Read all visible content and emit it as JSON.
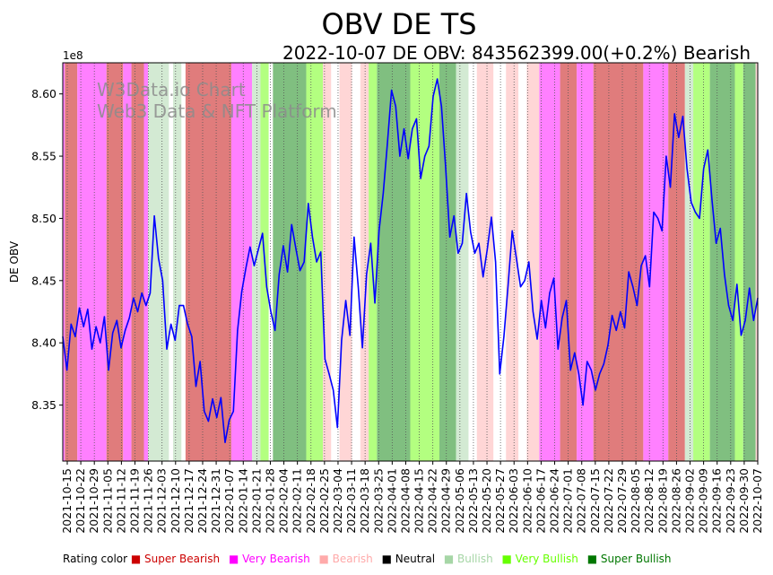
{
  "chart_data": {
    "type": "line",
    "title": "OBV DE TS",
    "subtitle": "2022-10-07 DE OBV: 843562399.00(+0.2%) Bearish",
    "ylabel": "DE OBV",
    "xlabel": "",
    "offset_label": "1e8",
    "ylim": [
      8.305,
      8.625
    ],
    "y_ticks": [
      "8.35",
      "8.40",
      "8.45",
      "8.50",
      "8.55",
      "8.60"
    ],
    "y_tick_values": [
      8.35,
      8.4,
      8.45,
      8.5,
      8.55,
      8.6
    ],
    "watermark": [
      "W3Data.io Chart",
      "Web3 Data & NFT Platform"
    ],
    "x_ticks": [
      "2021-10-15",
      "2021-10-22",
      "2021-10-29",
      "2021-11-05",
      "2021-11-12",
      "2021-11-19",
      "2021-11-26",
      "2021-12-03",
      "2021-12-10",
      "2021-12-17",
      "2021-12-24",
      "2021-12-31",
      "2022-01-07",
      "2022-01-14",
      "2022-01-21",
      "2022-01-28",
      "2022-02-04",
      "2022-02-11",
      "2022-02-18",
      "2022-02-25",
      "2022-03-04",
      "2022-03-11",
      "2022-03-18",
      "2022-03-25",
      "2022-04-01",
      "2022-04-08",
      "2022-04-15",
      "2022-04-22",
      "2022-04-29",
      "2022-05-06",
      "2022-05-13",
      "2022-05-20",
      "2022-05-27",
      "2022-06-03",
      "2022-06-10",
      "2022-06-17",
      "2022-06-24",
      "2022-07-01",
      "2022-07-08",
      "2022-07-15",
      "2022-07-22",
      "2022-07-29",
      "2022-08-05",
      "2022-08-12",
      "2022-08-19",
      "2022-08-26",
      "2022-09-02",
      "2022-09-09",
      "2022-09-16",
      "2022-09-23",
      "2022-09-30",
      "2022-10-07"
    ],
    "series": [
      {
        "name": "DE OBV",
        "color": "#0000ff",
        "points": [
          [
            0,
            8.405
          ],
          [
            1,
            8.378
          ],
          [
            2,
            8.415
          ],
          [
            3,
            8.405
          ],
          [
            4,
            8.428
          ],
          [
            5,
            8.413
          ],
          [
            6,
            8.427
          ],
          [
            7,
            8.395
          ],
          [
            8,
            8.413
          ],
          [
            9,
            8.4
          ],
          [
            10,
            8.421
          ],
          [
            11,
            8.378
          ],
          [
            12,
            8.408
          ],
          [
            13,
            8.418
          ],
          [
            14,
            8.396
          ],
          [
            15,
            8.41
          ],
          [
            16,
            8.42
          ],
          [
            17,
            8.436
          ],
          [
            18,
            8.425
          ],
          [
            19,
            8.44
          ],
          [
            20,
            8.43
          ],
          [
            21,
            8.44
          ],
          [
            22,
            8.502
          ],
          [
            23,
            8.468
          ],
          [
            24,
            8.45
          ],
          [
            25,
            8.395
          ],
          [
            26,
            8.415
          ],
          [
            27,
            8.402
          ],
          [
            28,
            8.43
          ],
          [
            29,
            8.43
          ],
          [
            30,
            8.415
          ],
          [
            31,
            8.405
          ],
          [
            32,
            8.365
          ],
          [
            33,
            8.385
          ],
          [
            34,
            8.345
          ],
          [
            35,
            8.337
          ],
          [
            36,
            8.355
          ],
          [
            37,
            8.34
          ],
          [
            38,
            8.356
          ],
          [
            39,
            8.32
          ],
          [
            40,
            8.338
          ],
          [
            41,
            8.345
          ],
          [
            42,
            8.41
          ],
          [
            43,
            8.441
          ],
          [
            44,
            8.46
          ],
          [
            45,
            8.477
          ],
          [
            46,
            8.462
          ],
          [
            47,
            8.475
          ],
          [
            48,
            8.488
          ],
          [
            49,
            8.445
          ],
          [
            50,
            8.425
          ],
          [
            51,
            8.41
          ],
          [
            52,
            8.455
          ],
          [
            53,
            8.478
          ],
          [
            54,
            8.457
          ],
          [
            55,
            8.495
          ],
          [
            56,
            8.476
          ],
          [
            57,
            8.458
          ],
          [
            58,
            8.465
          ],
          [
            59,
            8.512
          ],
          [
            60,
            8.485
          ],
          [
            61,
            8.465
          ],
          [
            62,
            8.473
          ],
          [
            63,
            8.387
          ],
          [
            64,
            8.375
          ],
          [
            65,
            8.362
          ],
          [
            66,
            8.332
          ],
          [
            67,
            8.402
          ],
          [
            68,
            8.434
          ],
          [
            69,
            8.406
          ],
          [
            70,
            8.485
          ],
          [
            71,
            8.445
          ],
          [
            72,
            8.396
          ],
          [
            73,
            8.455
          ],
          [
            74,
            8.48
          ],
          [
            75,
            8.432
          ],
          [
            76,
            8.49
          ],
          [
            77,
            8.52
          ],
          [
            78,
            8.56
          ],
          [
            79,
            8.603
          ],
          [
            80,
            8.59
          ],
          [
            81,
            8.55
          ],
          [
            82,
            8.572
          ],
          [
            83,
            8.548
          ],
          [
            84,
            8.572
          ],
          [
            85,
            8.58
          ],
          [
            86,
            8.532
          ],
          [
            87,
            8.55
          ],
          [
            88,
            8.558
          ],
          [
            89,
            8.598
          ],
          [
            90,
            8.612
          ],
          [
            91,
            8.59
          ],
          [
            92,
            8.541
          ],
          [
            93,
            8.485
          ],
          [
            94,
            8.502
          ],
          [
            95,
            8.472
          ],
          [
            96,
            8.48
          ],
          [
            97,
            8.52
          ],
          [
            98,
            8.489
          ],
          [
            99,
            8.472
          ],
          [
            100,
            8.48
          ],
          [
            101,
            8.453
          ],
          [
            102,
            8.475
          ],
          [
            103,
            8.501
          ],
          [
            104,
            8.465
          ],
          [
            105,
            8.375
          ],
          [
            106,
            8.405
          ],
          [
            107,
            8.446
          ],
          [
            108,
            8.49
          ],
          [
            109,
            8.468
          ],
          [
            110,
            8.445
          ],
          [
            111,
            8.45
          ],
          [
            112,
            8.465
          ],
          [
            113,
            8.425
          ],
          [
            114,
            8.403
          ],
          [
            115,
            8.434
          ],
          [
            116,
            8.412
          ],
          [
            117,
            8.44
          ],
          [
            118,
            8.452
          ],
          [
            119,
            8.395
          ],
          [
            120,
            8.42
          ],
          [
            121,
            8.434
          ],
          [
            122,
            8.378
          ],
          [
            123,
            8.392
          ],
          [
            124,
            8.375
          ],
          [
            125,
            8.35
          ],
          [
            126,
            8.385
          ],
          [
            127,
            8.378
          ],
          [
            128,
            8.362
          ],
          [
            129,
            8.375
          ],
          [
            130,
            8.383
          ],
          [
            131,
            8.398
          ],
          [
            132,
            8.422
          ],
          [
            133,
            8.41
          ],
          [
            134,
            8.425
          ],
          [
            135,
            8.412
          ],
          [
            136,
            8.457
          ],
          [
            137,
            8.445
          ],
          [
            138,
            8.43
          ],
          [
            139,
            8.462
          ],
          [
            140,
            8.47
          ],
          [
            141,
            8.445
          ],
          [
            142,
            8.505
          ],
          [
            143,
            8.5
          ],
          [
            144,
            8.49
          ],
          [
            145,
            8.55
          ],
          [
            146,
            8.525
          ],
          [
            147,
            8.584
          ],
          [
            148,
            8.565
          ],
          [
            149,
            8.582
          ],
          [
            150,
            8.54
          ],
          [
            151,
            8.513
          ],
          [
            152,
            8.505
          ],
          [
            153,
            8.5
          ],
          [
            154,
            8.54
          ],
          [
            155,
            8.555
          ],
          [
            156,
            8.515
          ],
          [
            157,
            8.48
          ],
          [
            158,
            8.492
          ],
          [
            159,
            8.455
          ],
          [
            160,
            8.43
          ],
          [
            161,
            8.418
          ],
          [
            162,
            8.447
          ],
          [
            163,
            8.406
          ],
          [
            164,
            8.418
          ],
          [
            165,
            8.444
          ],
          [
            166,
            8.418
          ],
          [
            167,
            8.436
          ]
        ]
      }
    ],
    "x_count": 168,
    "rating_bands": [
      [
        0,
        0,
        "very-bearish"
      ],
      [
        1,
        3,
        "super-bearish"
      ],
      [
        4,
        10,
        "very-bearish"
      ],
      [
        11,
        14,
        "super-bearish"
      ],
      [
        15,
        16,
        "very-bearish"
      ],
      [
        17,
        19,
        "super-bearish"
      ],
      [
        20,
        20,
        "very-bearish"
      ],
      [
        21,
        25,
        "bullish"
      ],
      [
        27,
        28,
        "bullish"
      ],
      [
        30,
        40,
        "super-bearish"
      ],
      [
        41,
        45,
        "very-bearish"
      ],
      [
        46,
        47,
        "bullish"
      ],
      [
        48,
        49,
        "very-bullish"
      ],
      [
        50,
        50,
        "neutral"
      ],
      [
        51,
        58,
        "super-bullish"
      ],
      [
        59,
        62,
        "very-bullish"
      ],
      [
        63,
        64,
        "bearish"
      ],
      [
        65,
        66,
        "neutral"
      ],
      [
        67,
        69,
        "bearish"
      ],
      [
        70,
        71,
        "neutral"
      ],
      [
        72,
        73,
        "bearish"
      ],
      [
        74,
        75,
        "very-bullish"
      ],
      [
        76,
        83,
        "super-bullish"
      ],
      [
        84,
        90,
        "very-bullish"
      ],
      [
        91,
        94,
        "super-bullish"
      ],
      [
        95,
        97,
        "bullish"
      ],
      [
        98,
        99,
        "neutral"
      ],
      [
        100,
        103,
        "bearish"
      ],
      [
        104,
        106,
        "neutral"
      ],
      [
        107,
        109,
        "bearish"
      ],
      [
        110,
        111,
        "neutral"
      ],
      [
        112,
        114,
        "bearish"
      ],
      [
        115,
        119,
        "very-bearish"
      ],
      [
        120,
        123,
        "super-bearish"
      ],
      [
        124,
        127,
        "very-bearish"
      ],
      [
        128,
        139,
        "super-bearish"
      ],
      [
        140,
        145,
        "very-bearish"
      ],
      [
        146,
        149,
        "super-bearish"
      ],
      [
        150,
        151,
        "bullish"
      ],
      [
        152,
        155,
        "very-bullish"
      ],
      [
        156,
        161,
        "super-bullish"
      ],
      [
        162,
        163,
        "very-bullish"
      ],
      [
        164,
        166,
        "super-bullish"
      ],
      [
        167,
        171,
        "bearish"
      ],
      [
        172,
        174,
        "neutral"
      ],
      [
        175,
        178,
        "bearish"
      ],
      [
        179,
        180,
        "neutral"
      ],
      [
        181,
        182,
        "bearish"
      ]
    ],
    "rating_colors": {
      "super-bearish": "#e07c7c",
      "very-bearish": "#ff80ff",
      "bearish": "#ffd6d6",
      "neutral": "#ffffff",
      "bullish": "#d3ead3",
      "very-bullish": "#b3ff80",
      "super-bullish": "#80bf80"
    },
    "legend": {
      "label": "Rating color",
      "items": [
        {
          "label": "Super Bearish",
          "color": "#cc0000"
        },
        {
          "label": "Very Bearish",
          "color": "#ff00ff"
        },
        {
          "label": "Bearish",
          "color": "#ffaaaa"
        },
        {
          "label": "Neutral",
          "color": "#000000"
        },
        {
          "label": "Bullish",
          "color": "#a6d6a6"
        },
        {
          "label": "Very Bullish",
          "color": "#66ff00"
        },
        {
          "label": "Super Bullish",
          "color": "#007700"
        }
      ]
    }
  }
}
